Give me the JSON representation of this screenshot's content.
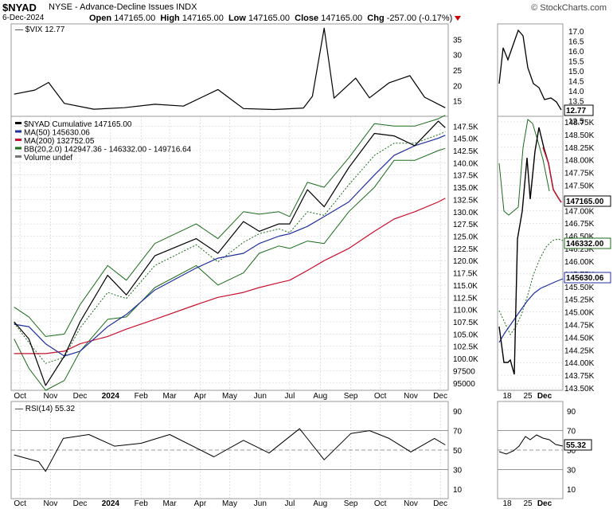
{
  "header": {
    "symbol": "$NYAD",
    "description": "NYSE - Advance-Decline Issues  INDX",
    "date": "6-Dec-2024",
    "open_label": "Open",
    "open": "147165.00",
    "high_label": "High",
    "high": "147165.00",
    "low_label": "Low",
    "low": "147165.00",
    "close_label": "Close",
    "close": "147165.00",
    "chg_label": "Chg",
    "chg": "-257.00 (-0.17%)",
    "brand": "© StockCharts.com"
  },
  "colors": {
    "price": "#000000",
    "ma50": "#1f2f9e",
    "ma200": "#c8102e",
    "bb": "#1a6b1a",
    "grid": "#cccccc",
    "ref": "#777777"
  },
  "legends": {
    "vix": "$VIX 12.77",
    "main": [
      "$NYAD Cumulative 147165.00",
      "MA(50) 145630.06",
      "MA(200) 132752.05",
      "BB(20,2.0) 142947.36 - 146332.00 - 149716.64",
      "Volume undef"
    ],
    "rsi": "RSI(14) 55.32"
  },
  "badges": {
    "price": "147165.00",
    "bb_mid": "146332.00",
    "ma50": "145630.06",
    "vix": "12.77",
    "rsi": "55.32"
  },
  "axes": {
    "months": [
      "Oct",
      "Nov",
      "Dec",
      "2024",
      "Feb",
      "Mar",
      "Apr",
      "May",
      "Jun",
      "Jul",
      "Aug",
      "Sep",
      "Oct",
      "Nov",
      "Dec"
    ],
    "zoom_days": [
      "18",
      "25",
      "Dec"
    ],
    "vix_ticks": [
      "35",
      "30",
      "25",
      "20",
      "15"
    ],
    "main_ticks": [
      "147.5K",
      "145.0K",
      "142.5K",
      "140.0K",
      "137.5K",
      "135.0K",
      "132.5K",
      "130.0K",
      "127.5K",
      "125.0K",
      "122.5K",
      "120.0K",
      "117.5K",
      "115.0K",
      "112.5K",
      "110.0K",
      "107.5K",
      "105.0K",
      "102.5K",
      "100.0K",
      "97500",
      "95000"
    ],
    "zoom_main_ticks": [
      "148.75K",
      "148.50K",
      "148.25K",
      "148.00K",
      "147.75K",
      "147.50K",
      "147.25K",
      "147.00K",
      "146.75K",
      "146.50K",
      "146.25K",
      "146.00K",
      "145.75K",
      "145.50K",
      "145.25K",
      "145.00K",
      "144.75K",
      "144.50K",
      "144.25K",
      "144.00K",
      "143.75K",
      "143.50K"
    ],
    "zoom_vix_ticks": [
      "17.0",
      "16.5",
      "16.0",
      "15.5",
      "15.0",
      "14.5",
      "14.0",
      "13.5",
      "13.0",
      "12.5"
    ],
    "rsi_ticks": [
      "90",
      "70",
      "50",
      "30",
      "10"
    ]
  },
  "chart_data": [
    {
      "type": "line",
      "title": "$VIX",
      "x": [
        "2023-09-25",
        "2023-10-16",
        "2023-10-30",
        "2023-11-15",
        "2023-12-15",
        "2024-01-15",
        "2024-02-15",
        "2024-03-15",
        "2024-04-19",
        "2024-05-15",
        "2024-06-15",
        "2024-07-15",
        "2024-07-24",
        "2024-08-05",
        "2024-08-15",
        "2024-09-06",
        "2024-09-20",
        "2024-10-10",
        "2024-10-31",
        "2024-11-15",
        "2024-12-06"
      ],
      "values": [
        17.2,
        18.5,
        21.0,
        14.2,
        12.3,
        12.8,
        13.9,
        13.3,
        18.7,
        12.5,
        12.2,
        12.7,
        16.5,
        38.6,
        15.9,
        22.4,
        16.0,
        20.9,
        23.2,
        16.2,
        12.77
      ],
      "ylim": [
        10,
        40
      ]
    },
    {
      "type": "line",
      "title": "$NYAD Cumulative",
      "x": [
        "2023-09-25",
        "2023-10-10",
        "2023-10-27",
        "2023-11-15",
        "2023-12-01",
        "2023-12-29",
        "2024-01-17",
        "2024-02-15",
        "2024-03-28",
        "2024-04-19",
        "2024-05-15",
        "2024-05-31",
        "2024-06-20",
        "2024-07-01",
        "2024-07-19",
        "2024-08-05",
        "2024-08-30",
        "2024-09-25",
        "2024-10-15",
        "2024-11-05",
        "2024-11-29",
        "2024-12-06"
      ],
      "series": [
        {
          "name": "$NYAD Cumulative",
          "values": [
            107500,
            104000,
            94500,
            100500,
            107500,
            117000,
            113000,
            121000,
            124500,
            121500,
            128000,
            126000,
            127500,
            127500,
            134500,
            131000,
            139000,
            146000,
            145500,
            143500,
            148500,
            147165
          ]
        },
        {
          "name": "MA(50)",
          "values": [
            107000,
            106500,
            103000,
            100500,
            101500,
            106500,
            109000,
            114000,
            118500,
            120500,
            121500,
            123500,
            125000,
            125500,
            127000,
            129000,
            132000,
            137500,
            141500,
            143500,
            145000,
            145630
          ]
        },
        {
          "name": "MA(200)",
          "values": [
            101000,
            101000,
            101000,
            101500,
            103000,
            104500,
            106000,
            108000,
            111000,
            112500,
            113500,
            114500,
            115500,
            116000,
            118000,
            120000,
            122500,
            126000,
            128500,
            130000,
            132000,
            132752
          ]
        },
        {
          "name": "BB upper",
          "values": [
            110500,
            108500,
            104500,
            105000,
            111000,
            119000,
            116000,
            123500,
            127500,
            124500,
            130000,
            129500,
            130000,
            129000,
            136000,
            135000,
            141000,
            148000,
            147500,
            147500,
            149000,
            149717
          ]
        },
        {
          "name": "BB lower",
          "values": [
            104000,
            98000,
            93500,
            95500,
            101500,
            108000,
            108500,
            114500,
            119000,
            115000,
            117500,
            121500,
            123000,
            122500,
            124000,
            123500,
            130000,
            135000,
            140500,
            140500,
            142500,
            142947
          ]
        }
      ],
      "ylim": [
        93500,
        149500
      ]
    },
    {
      "type": "line",
      "title": "RSI(14)",
      "x": [
        "2023-09-25",
        "2023-10-20",
        "2023-10-27",
        "2023-11-14",
        "2023-12-10",
        "2024-01-05",
        "2024-02-01",
        "2024-03-01",
        "2024-04-15",
        "2024-05-15",
        "2024-06-10",
        "2024-07-11",
        "2024-08-05",
        "2024-09-01",
        "2024-09-20",
        "2024-10-10",
        "2024-11-01",
        "2024-11-25",
        "2024-12-06"
      ],
      "values": [
        45,
        38,
        28,
        62,
        66,
        54,
        57,
        66,
        43,
        60,
        47,
        72,
        40,
        67,
        70,
        62,
        48,
        62,
        55.32
      ],
      "ylim": [
        0,
        100
      ]
    }
  ]
}
